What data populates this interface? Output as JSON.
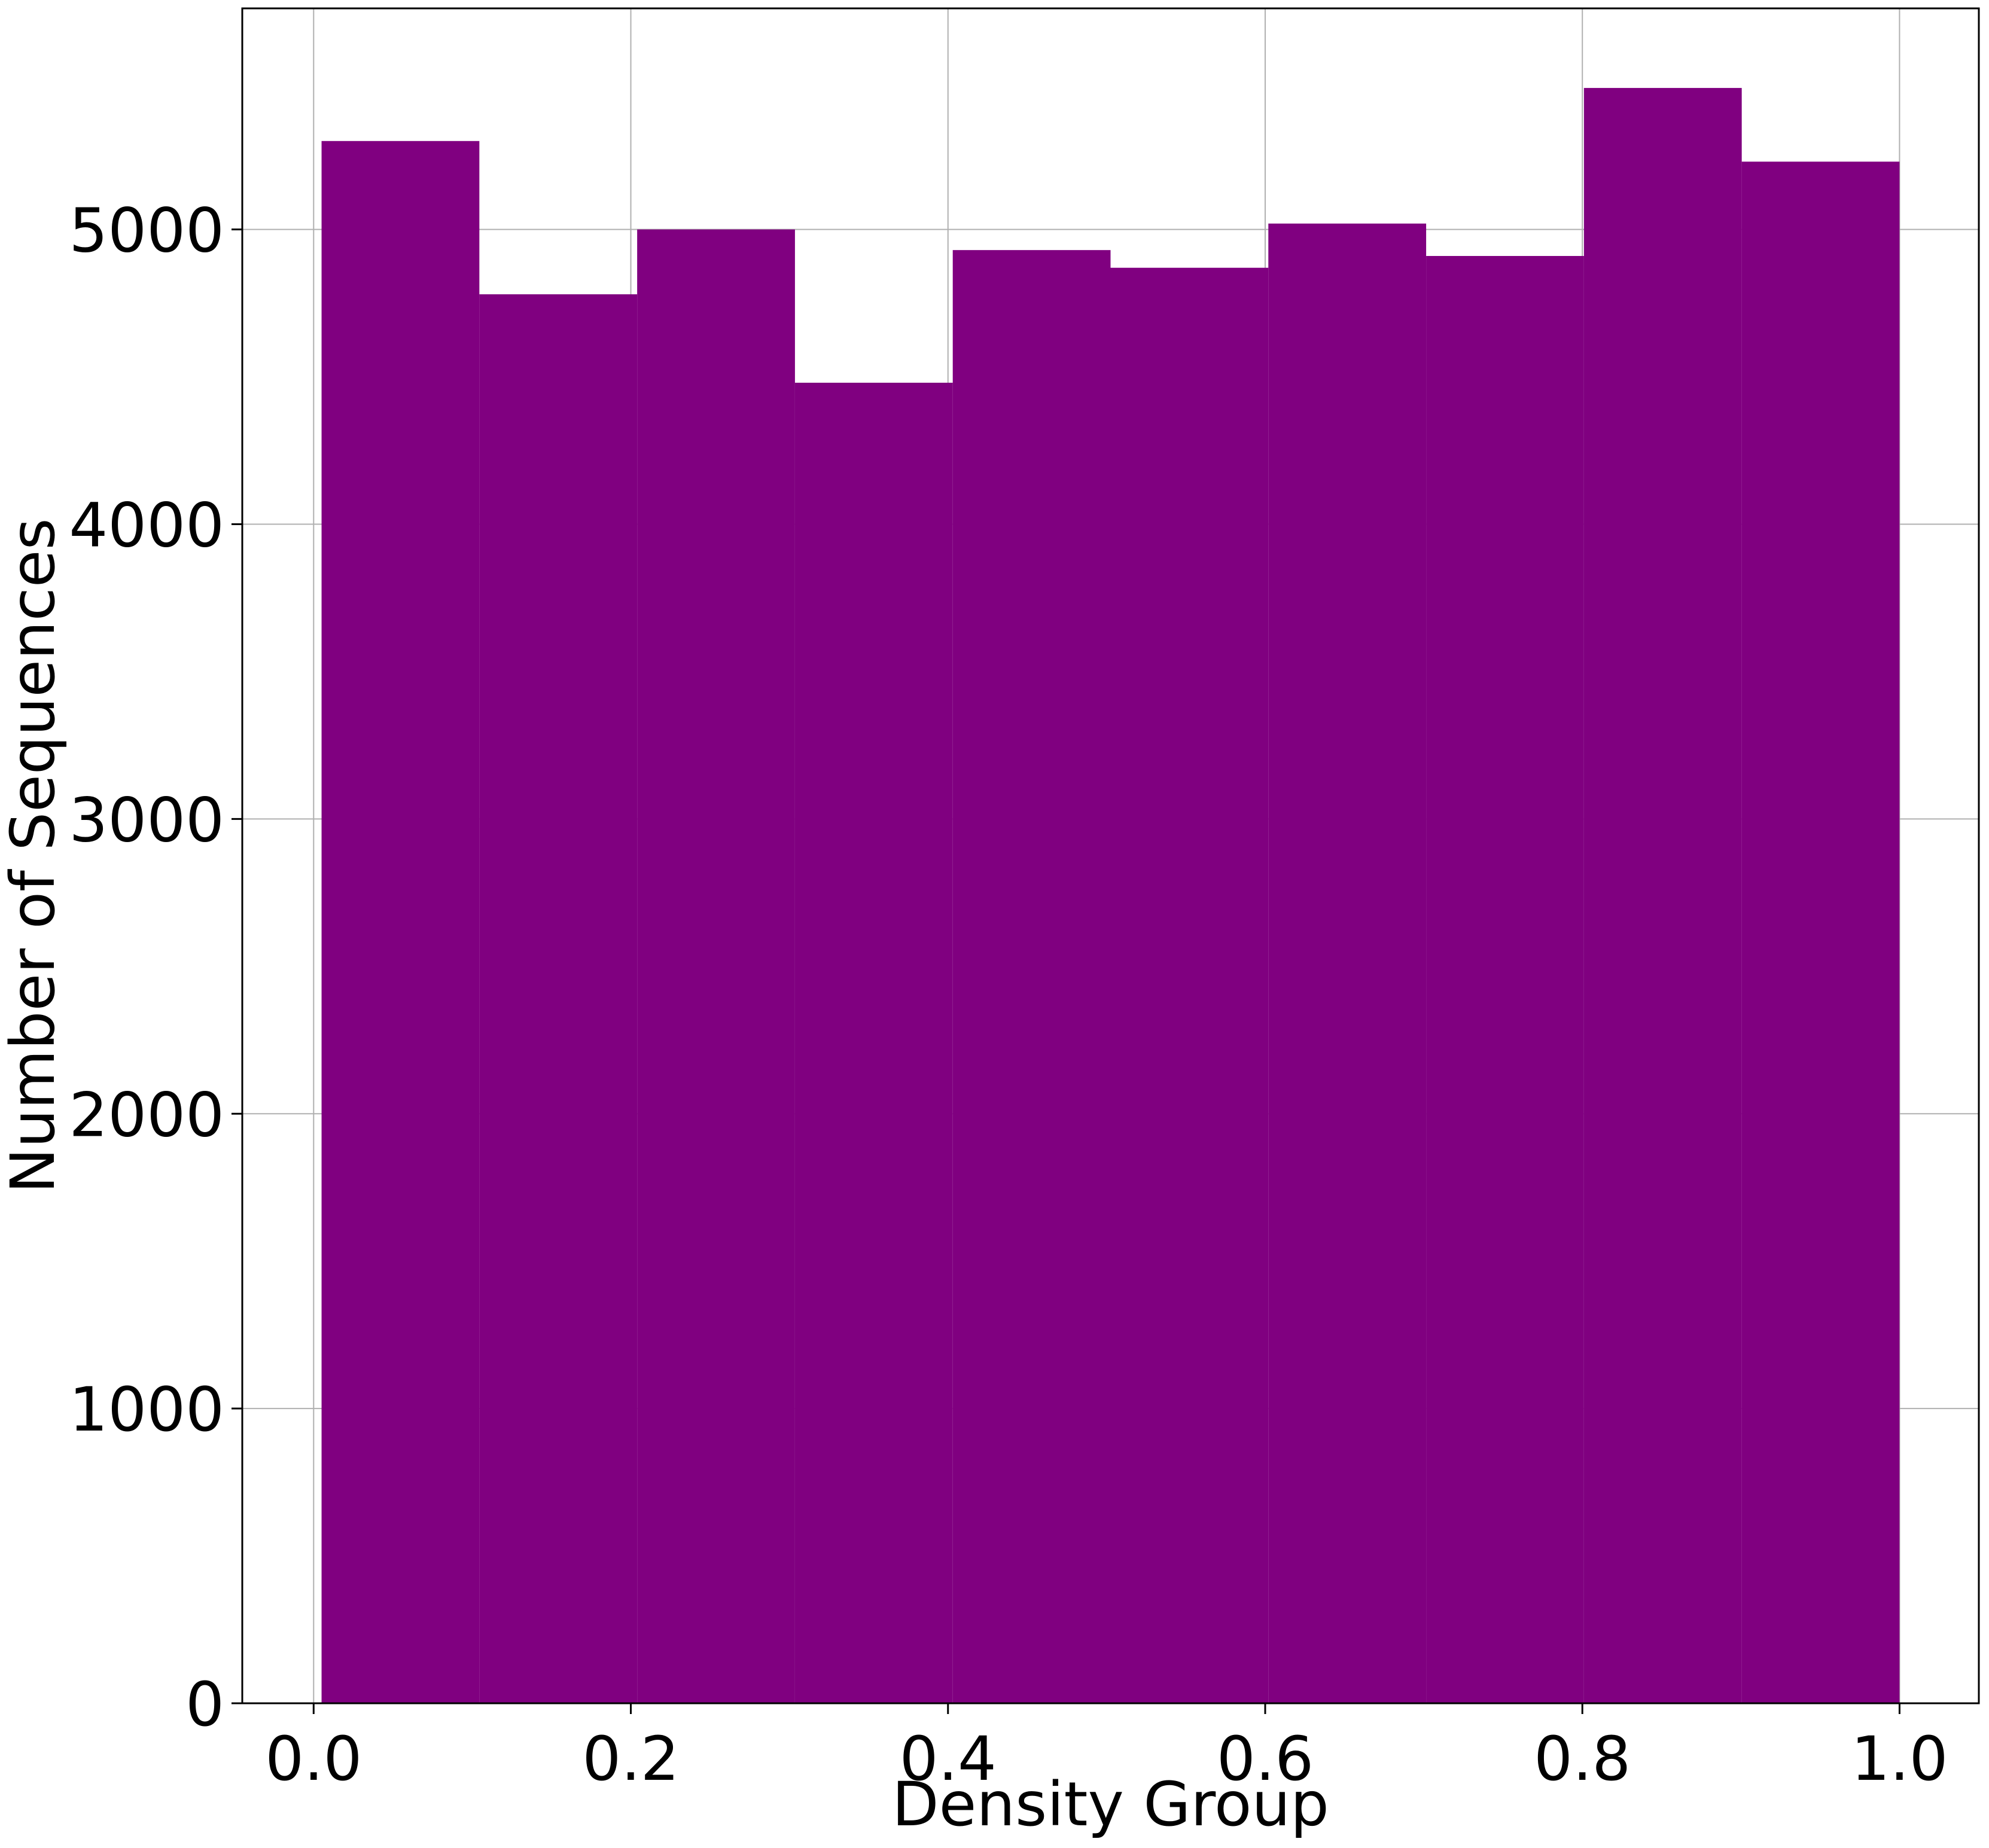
{
  "chart_data": {
    "type": "bar",
    "subtype": "histogram",
    "title": "",
    "xlabel": "Density Group",
    "ylabel": "Number of Sequences",
    "bins": [
      {
        "x0": 0.005,
        "x1": 0.1045,
        "value": 5300
      },
      {
        "x0": 0.1045,
        "x1": 0.204,
        "value": 4780
      },
      {
        "x0": 0.204,
        "x1": 0.3035,
        "value": 5000
      },
      {
        "x0": 0.3035,
        "x1": 0.403,
        "value": 4480
      },
      {
        "x0": 0.403,
        "x1": 0.5025,
        "value": 4930
      },
      {
        "x0": 0.5025,
        "x1": 0.602,
        "value": 4870
      },
      {
        "x0": 0.602,
        "x1": 0.7015,
        "value": 5020
      },
      {
        "x0": 0.7015,
        "x1": 0.801,
        "value": 4910
      },
      {
        "x0": 0.801,
        "x1": 0.9005,
        "value": 5480
      },
      {
        "x0": 0.9005,
        "x1": 1.0,
        "value": 5230
      }
    ],
    "xlim": [
      -0.045,
      1.05
    ],
    "ylim": [
      0,
      5750
    ],
    "xticks": [
      0.0,
      0.2,
      0.4,
      0.6,
      0.8,
      1.0
    ],
    "xtick_labels": [
      "0.0",
      "0.2",
      "0.4",
      "0.6",
      "0.8",
      "1.0"
    ],
    "yticks": [
      0,
      1000,
      2000,
      3000,
      4000,
      5000
    ],
    "ytick_labels": [
      "0",
      "1000",
      "2000",
      "3000",
      "4000",
      "5000"
    ],
    "grid": true,
    "legend": "none",
    "colors": {
      "bar": "#800080",
      "grid": "#b0b0b0",
      "axis": "#000000"
    }
  }
}
